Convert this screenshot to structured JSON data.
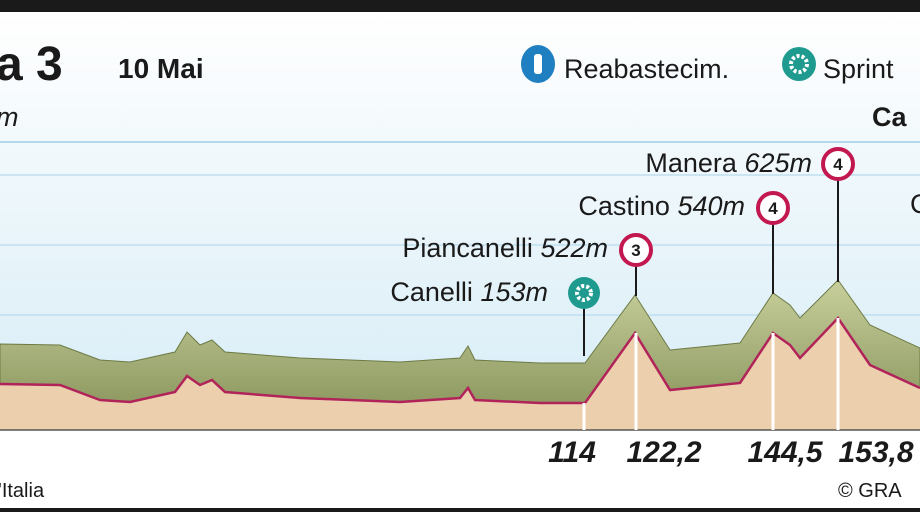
{
  "header": {
    "title": "a 3",
    "date": "10 Mai",
    "legend": [
      {
        "label": "Reabastecim."
      },
      {
        "label": "Sprint"
      }
    ]
  },
  "labels": {
    "left": "m",
    "right": "Ca",
    "right_lower": "C"
  },
  "points": [
    {
      "name": "Manera",
      "altitude": "625m",
      "category": "4"
    },
    {
      "name": "Castino",
      "altitude": "540m",
      "category": "4"
    },
    {
      "name": "Piancanelli",
      "altitude": "522m",
      "category": "3"
    },
    {
      "name": "Canelli",
      "altitude": "153m"
    }
  ],
  "km_markers": [
    "114",
    "122,2",
    "144,5",
    "153,8"
  ],
  "footer": {
    "left": "'Italia",
    "right": "© GRA"
  }
}
